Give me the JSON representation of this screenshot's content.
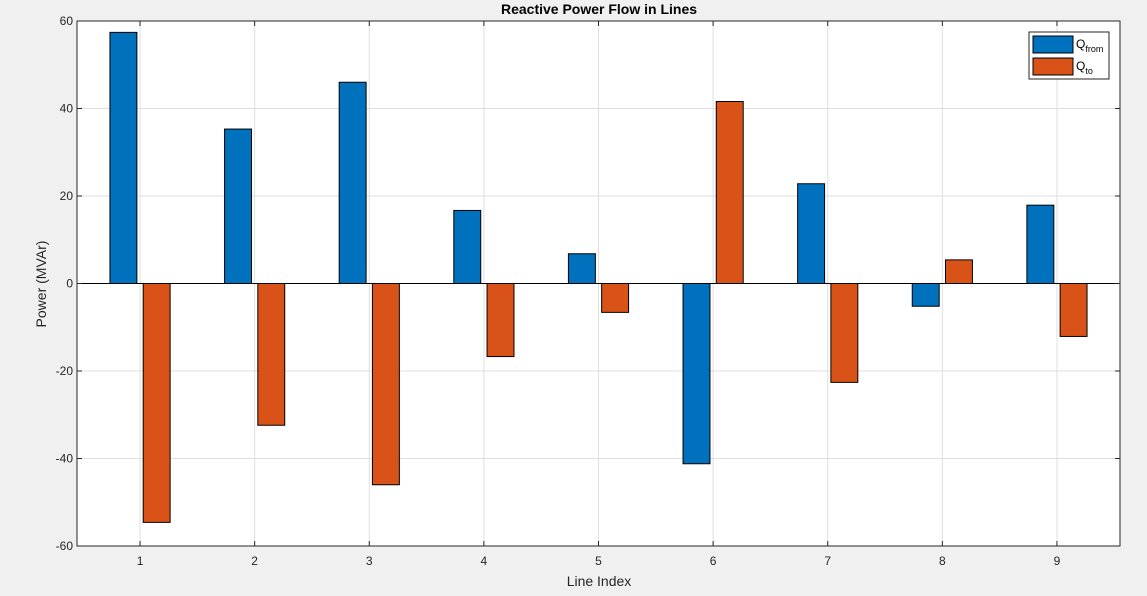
{
  "chart_data": {
    "type": "bar",
    "title": "Reactive Power Flow in Lines",
    "xlabel": "Line Index",
    "ylabel": "Power (MVAr)",
    "categories": [
      "1",
      "2",
      "3",
      "4",
      "5",
      "6",
      "7",
      "8",
      "9"
    ],
    "ylim": [
      -60,
      60
    ],
    "yticks": [
      "-60",
      "-40",
      "-20",
      "0",
      "20",
      "40",
      "60"
    ],
    "grid": true,
    "legend_position": "top-right",
    "series": [
      {
        "name_main": "Q",
        "name_sub": "from",
        "color": "#0072bd",
        "values": [
          57.4,
          35.3,
          46.0,
          16.7,
          6.8,
          -41.2,
          22.8,
          -5.2,
          17.9
        ]
      },
      {
        "name_main": "Q",
        "name_sub": "to",
        "color": "#d95319",
        "values": [
          -54.6,
          -32.4,
          -46.0,
          -16.7,
          -6.6,
          41.6,
          -22.6,
          5.4,
          -12.1
        ]
      }
    ]
  }
}
